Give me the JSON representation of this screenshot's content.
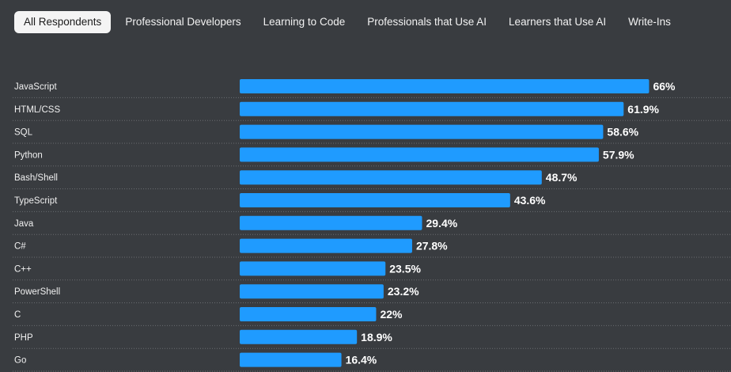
{
  "tabs": [
    {
      "label": "All Respondents",
      "active": true
    },
    {
      "label": "Professional Developers",
      "active": false
    },
    {
      "label": "Learning to Code",
      "active": false
    },
    {
      "label": "Professionals that Use AI",
      "active": false
    },
    {
      "label": "Learners that Use AI",
      "active": false
    },
    {
      "label": "Write-Ins",
      "active": false
    }
  ],
  "colors": {
    "background": "#393c40",
    "bar": "#1f9bff",
    "active_tab_bg": "#f4f4f4",
    "text": "#f0f0f0",
    "divider": "#6a6d71"
  },
  "chart_data": {
    "type": "bar",
    "orientation": "horizontal",
    "categories": [
      "JavaScript",
      "HTML/CSS",
      "SQL",
      "Python",
      "Bash/Shell",
      "TypeScript",
      "Java",
      "C#",
      "C++",
      "PowerShell",
      "C",
      "PHP",
      "Go"
    ],
    "values": [
      66,
      61.9,
      58.6,
      57.9,
      48.7,
      43.6,
      29.4,
      27.8,
      23.5,
      23.2,
      22,
      18.9,
      16.4
    ],
    "value_labels": [
      "66%",
      "61.9%",
      "58.6%",
      "57.9%",
      "48.7%",
      "43.6%",
      "29.4%",
      "27.8%",
      "23.5%",
      "23.2%",
      "22%",
      "18.9%",
      "16.4%"
    ],
    "xlim": [
      0,
      100
    ],
    "grid": false,
    "legend": "none"
  }
}
